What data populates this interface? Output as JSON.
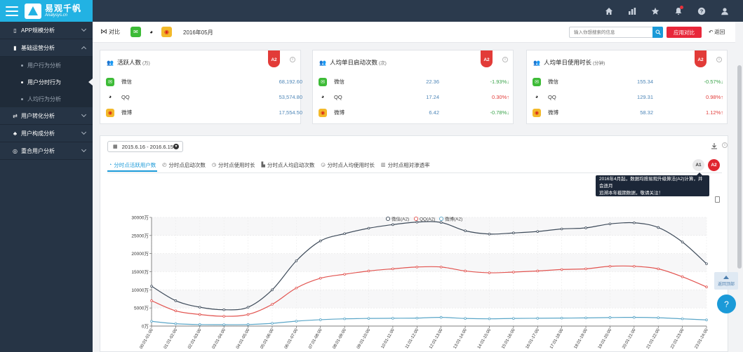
{
  "app": {
    "name": "易观千帆",
    "subtitle": "Analysys.cn"
  },
  "sidebar": {
    "groups": [
      {
        "label": "APP规模分析",
        "icon": "phone-icon",
        "expanded": false
      },
      {
        "label": "基础运营分析",
        "icon": "bar-chart-icon",
        "expanded": true,
        "items": [
          {
            "label": "用户行为分析",
            "active": false
          },
          {
            "label": "用户分时行为",
            "active": true
          },
          {
            "label": "人均行为分析",
            "active": false
          }
        ]
      },
      {
        "label": "用户转化分析",
        "icon": "transfer-icon",
        "expanded": false
      },
      {
        "label": "用户构成分析",
        "icon": "structure-icon",
        "expanded": false
      },
      {
        "label": "重合用户分析",
        "icon": "overlap-icon",
        "expanded": false
      }
    ]
  },
  "toolbar": {
    "compare_label": "对比",
    "month": "2016年05月",
    "search_placeholder": "输入你想搜索的信息",
    "apply_label": "应用对比",
    "back_label": "返回"
  },
  "apps": [
    {
      "name": "微信",
      "icon": "wechat-icon"
    },
    {
      "name": "QQ",
      "icon": "qq-penguin-icon"
    },
    {
      "name": "微博",
      "icon": "weibo-icon"
    }
  ],
  "metric_cards": [
    {
      "title": "活跃人数",
      "unit": "(万)",
      "badge": "A2",
      "rows": [
        {
          "app": "微信",
          "value": "68,192.60",
          "change": ""
        },
        {
          "app": "QQ",
          "value": "53,574.80",
          "change": ""
        },
        {
          "app": "微博",
          "value": "17,554.50",
          "change": ""
        }
      ]
    },
    {
      "title": "人均单日启动次数",
      "unit": "(次)",
      "badge": "A2",
      "rows": [
        {
          "app": "微信",
          "value": "22.36",
          "change": "-1.93%↓",
          "dir": "down"
        },
        {
          "app": "QQ",
          "value": "17.24",
          "change": "0.30%↑",
          "dir": "up"
        },
        {
          "app": "微博",
          "value": "6.42",
          "change": "-0.78%↓",
          "dir": "down"
        }
      ]
    },
    {
      "title": "人均单日使用时长",
      "unit": "(分钟)",
      "badge": "A2",
      "rows": [
        {
          "app": "微信",
          "value": "155.34",
          "change": "-0.57%↓",
          "dir": "down"
        },
        {
          "app": "QQ",
          "value": "129.31",
          "change": "0.98%↑",
          "dir": "up"
        },
        {
          "app": "微博",
          "value": "58.32",
          "change": "1.12%↑",
          "dir": "up"
        }
      ]
    }
  ],
  "chart_panel": {
    "date_range": "2015.6.16 - 2016.6.15",
    "tabs": [
      "分时点活跃用户数",
      "分时点启动次数",
      "分时点使用时长",
      "分时点人均启动次数",
      "分时点人均使用时长",
      "分时点相对渗透率"
    ],
    "active_tab": 0,
    "algo_buttons": [
      "A1",
      "A2"
    ],
    "tooltip_lines": [
      "2016年4月起，数据均按易观升级算法(A2)计算，并会逐月",
      "追溯本年截期数据，敬请关注！"
    ]
  },
  "float": {
    "back_to_top": "返回顶部",
    "help_icon": "help-question-icon"
  },
  "colors": {
    "wechat": "#3e4b5a",
    "qq": "#e25450",
    "weibo": "#5aa6c8",
    "accent": "#1b9ad8",
    "danger": "#e8273a"
  },
  "chart_data": {
    "type": "line",
    "title": "",
    "xlabel": "",
    "ylabel": "",
    "x": [
      "00:01-01:00",
      "01:01-02:00",
      "02:01-03:00",
      "03:01-04:00",
      "04:01-05:00",
      "05:01-06:00",
      "06:01-07:00",
      "07:01-08:00",
      "08:01-09:00",
      "09:01-10:00",
      "10:01-11:00",
      "11:01-12:00",
      "12:01-13:00",
      "13:01-14:00",
      "14:01-15:00",
      "15:01-16:00",
      "16:01-17:00",
      "17:01-18:00",
      "18:01-19:00",
      "19:01-20:00",
      "20:01-21:00",
      "21:01-22:00",
      "22:01-23:00",
      "23:01-24:00"
    ],
    "yticks": [
      "0万",
      "5000万",
      "10000万",
      "15000万",
      "20000万",
      "25000万",
      "30000万"
    ],
    "ylim": [
      0,
      30000
    ],
    "grid": true,
    "legend_position": "top-center",
    "series": [
      {
        "name": "微信(A2)",
        "values": [
          11000,
          7000,
          5200,
          4500,
          5200,
          10000,
          18000,
          23500,
          25500,
          27000,
          28000,
          28700,
          28600,
          26300,
          25400,
          25700,
          26100,
          26800,
          27100,
          28200,
          28500,
          27200,
          23200,
          17200
        ]
      },
      {
        "name": "QQ(A2)",
        "values": [
          7000,
          4200,
          3200,
          2700,
          3200,
          6000,
          10500,
          13200,
          14300,
          15200,
          15800,
          16300,
          16300,
          15200,
          14700,
          14900,
          15200,
          15600,
          15800,
          16500,
          16500,
          15800,
          13600,
          10800
        ]
      },
      {
        "name": "微博(A2)",
        "values": [
          1300,
          650,
          420,
          380,
          420,
          750,
          1350,
          1750,
          2000,
          2100,
          2150,
          2200,
          2400,
          2100,
          2000,
          2100,
          2150,
          2200,
          2250,
          2350,
          2400,
          2300,
          2000,
          1700
        ]
      }
    ]
  }
}
